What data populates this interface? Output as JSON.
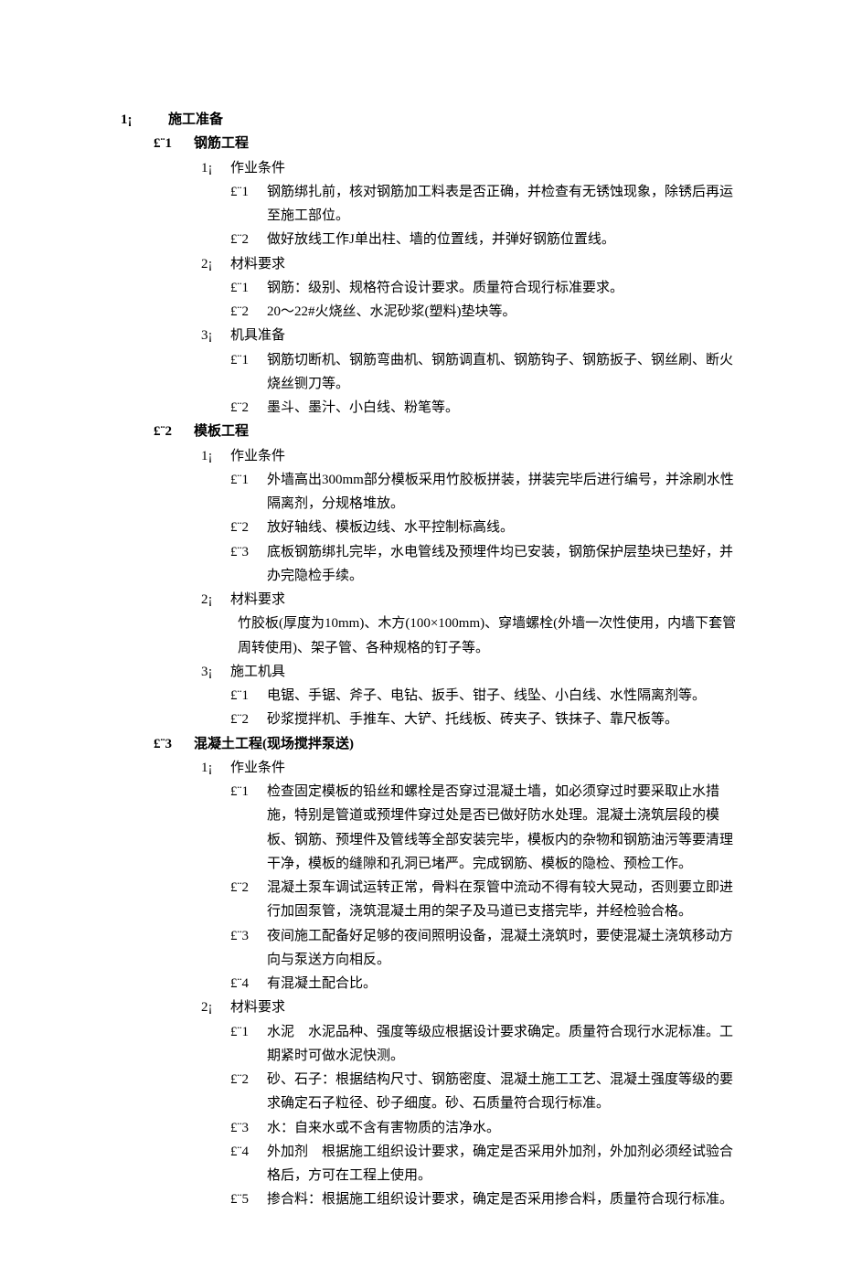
{
  "doc": {
    "section1": {
      "marker": "1¡",
      "title": "施工准备",
      "subs": [
        {
          "marker": "£¨1",
          "title": "钢筋工程",
          "groups": [
            {
              "marker": "1¡",
              "title": "作业条件",
              "items": [
                {
                  "marker": "£¨1",
                  "text": "钢筋绑扎前，核对钢筋加工料表是否正确，并检查有无锈蚀现象，除锈后再运至施工部位。"
                },
                {
                  "marker": "£¨2",
                  "text": "做好放线工作J单出柱、墙的位置线，并弹好钢筋位置线。"
                }
              ]
            },
            {
              "marker": "2¡",
              "title": "材料要求",
              "items": [
                {
                  "marker": "£¨1",
                  "text": "钢筋：级别、规格符合设计要求。质量符合现行标准要求。"
                },
                {
                  "marker": "£¨2",
                  "text": "20～22#火烧丝、水泥砂浆(塑料)垫块等。"
                }
              ]
            },
            {
              "marker": "3¡",
              "title": "机具准备",
              "items": [
                {
                  "marker": "£¨1",
                  "text": "钢筋切断机、钢筋弯曲机、钢筋调直机、钢筋钩子、钢筋扳子、钢丝刷、断火烧丝铡刀等。"
                },
                {
                  "marker": "£¨2",
                  "text": "墨斗、墨汁、小白线、粉笔等。"
                }
              ]
            }
          ]
        },
        {
          "marker": "£¨2",
          "title": "模板工程",
          "groups": [
            {
              "marker": "1¡",
              "title": "作业条件",
              "items": [
                {
                  "marker": "£¨1",
                  "text": "外墙高出300mm部分模板采用竹胶板拼装，拼装完毕后进行编号，并涂刷水性隔离剂，分规格堆放。"
                },
                {
                  "marker": "£¨2",
                  "text": "放好轴线、模板边线、水平控制标高线。"
                },
                {
                  "marker": "£¨3",
                  "text": "底板钢筋绑扎完毕，水电管线及预埋件均已安装，钢筋保护层垫块已垫好，并办完隐检手续。"
                }
              ]
            },
            {
              "marker": "2¡",
              "title": "材料要求",
              "body": "竹胶板(厚度为10mm)、木方(100×100mm)、穿墙螺栓(外墙一次性使用，内墙下套管周转使用)、架子管、各种规格的钉子等。"
            },
            {
              "marker": "3¡",
              "title": "施工机具",
              "items": [
                {
                  "marker": "£¨1",
                  "text": "电锯、手锯、斧子、电钻、扳手、钳子、线坠、小白线、水性隔离剂等。"
                },
                {
                  "marker": "£¨2",
                  "text": "砂浆搅拌机、手推车、大铲、托线板、砖夹子、铁抹子、靠尺板等。"
                }
              ]
            }
          ]
        },
        {
          "marker": "£¨3",
          "title": "混凝土工程(现场搅拌泵送)",
          "groups": [
            {
              "marker": "1¡",
              "title": "作业条件",
              "items": [
                {
                  "marker": "£¨1",
                  "text": "检查固定模板的铅丝和螺栓是否穿过混凝土墙，如必须穿过时要采取止水措施，特别是管道或预埋件穿过处是否已做好防水处理。混凝土浇筑层段的模板、钢筋、预埋件及管线等全部安装完毕，模板内的杂物和钢筋油污等要清理干净，模板的缝隙和孔洞已堵严。完成钢筋、模板的隐检、预检工作。"
                },
                {
                  "marker": "£¨2",
                  "text": "混凝土泵车调试运转正常，骨料在泵管中流动不得有较大晃动，否则要立即进行加固泵管，浇筑混凝土用的架子及马道已支搭完毕，并经检验合格。"
                },
                {
                  "marker": "£¨3",
                  "text": "夜间施工配备好足够的夜间照明设备，混凝土浇筑时，要使混凝土浇筑移动方向与泵送方向相反。"
                },
                {
                  "marker": "£¨4",
                  "text": "有混凝土配合比。"
                }
              ]
            },
            {
              "marker": "2¡",
              "title": "材料要求",
              "items": [
                {
                  "marker": "£¨1",
                  "text": "水泥　水泥品种、强度等级应根据设计要求确定。质量符合现行水泥标准。工期紧时可做水泥快测。"
                },
                {
                  "marker": "£¨2",
                  "text": "砂、石子：根据结构尺寸、钢筋密度、混凝土施工工艺、混凝土强度等级的要求确定石子粒径、砂子细度。砂、石质量符合现行标准。"
                },
                {
                  "marker": "£¨3",
                  "text": "水：自来水或不含有害物质的洁净水。"
                },
                {
                  "marker": "£¨4",
                  "text": "外加剂　根据施工组织设计要求，确定是否采用外加剂，外加剂必须经试验合格后，方可在工程上使用。"
                },
                {
                  "marker": "£¨5",
                  "text": "掺合料：根据施工组织设计要求，确定是否采用掺合料，质量符合现行标准。"
                }
              ]
            }
          ]
        }
      ]
    }
  }
}
